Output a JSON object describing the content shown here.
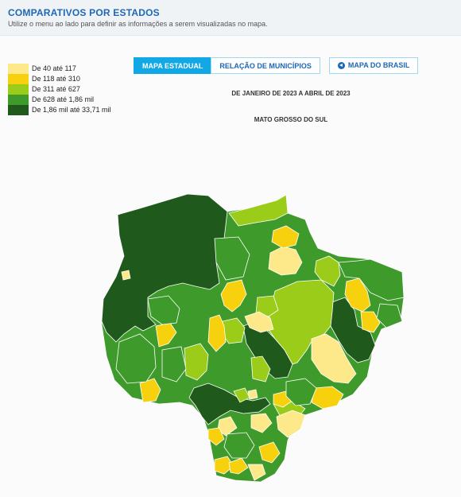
{
  "header": {
    "title": "COMPARATIVOS POR ESTADOS",
    "subtitle": "Utilize o menu ao lado para definir as informações a serem visualizadas no mapa."
  },
  "legend": [
    {
      "label": "De 40 até 117",
      "color": "#fde98a"
    },
    {
      "label": "De 118 até 310",
      "color": "#f7d10d"
    },
    {
      "label": "De 311 até 627",
      "color": "#9ccc1a"
    },
    {
      "label": "De 628 até 1,86 mil",
      "color": "#3f9a2c"
    },
    {
      "label": "De 1,86 mil até 33,71 mil",
      "color": "#1f5a1c"
    }
  ],
  "tabs": {
    "estadual": "MAPA ESTADUAL",
    "municipios": "RELAÇÃO DE MUNICÍPIOS",
    "brasil": "MAPA DO BRASIL"
  },
  "period": "DE JANEIRO DE 2023 A ABRIL DE 2023",
  "state": "MATO GROSSO DO SUL",
  "colors": {
    "tab_active": "#12a8e6",
    "title": "#1e67b6"
  }
}
